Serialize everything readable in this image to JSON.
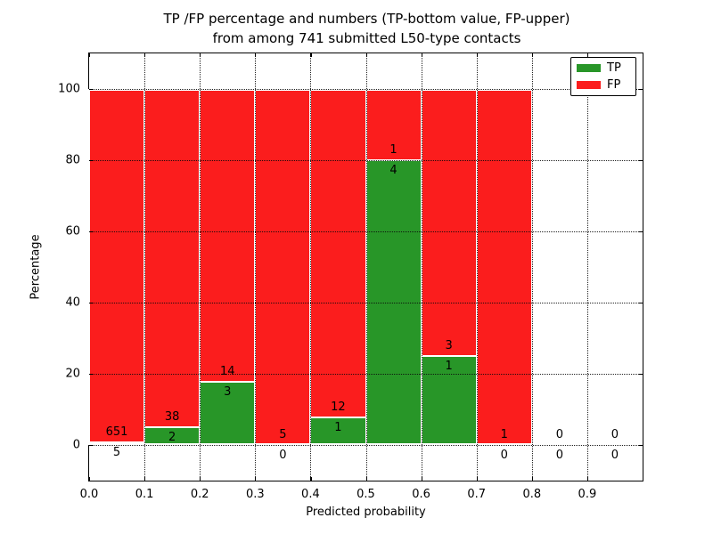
{
  "figure": {
    "title_line1": "TP /FP percentage and numbers (TP-bottom value, FP-upper)",
    "title_line2": "from among 741 submitted L50-type contacts"
  },
  "chart_data": {
    "type": "bar",
    "stacked": true,
    "title": "TP /FP percentage and numbers (TP-bottom value, FP-upper)\nfrom among 741 submitted L50-type contacts",
    "xlabel": "Predicted probability",
    "ylabel": "Percentage",
    "xlim": [
      0,
      1
    ],
    "ylim": [
      -10,
      110
    ],
    "xtick_values": [
      0.0,
      0.1,
      0.2,
      0.3,
      0.4,
      0.5,
      0.6,
      0.7,
      0.8,
      0.9
    ],
    "xtick_labels": [
      "0.0",
      "0.1",
      "0.2",
      "0.3",
      "0.4",
      "0.5",
      "0.6",
      "0.7",
      "0.8",
      "0.9"
    ],
    "ytick_values": [
      0,
      20,
      40,
      60,
      80,
      100
    ],
    "ytick_labels": [
      "0",
      "20",
      "40",
      "60",
      "80",
      "100"
    ],
    "grid": true,
    "grid_style": "dotted",
    "legend_position": "upper right",
    "legend": {
      "entries": [
        {
          "label": "TP",
          "color": "#289628"
        },
        {
          "label": "FP",
          "color": "#fb1d1d"
        }
      ]
    },
    "series_note": "Each bin stacks TP% (green, bottom) and FP% (red, top) summing to 100 when counts exist; annotation shows FP count above boundary, TP count below",
    "bins": [
      {
        "range": [
          0.0,
          0.1
        ],
        "tp_count": 5,
        "fp_count": 651,
        "tp_pct": 0.76,
        "fp_pct": 99.24
      },
      {
        "range": [
          0.1,
          0.2
        ],
        "tp_count": 2,
        "fp_count": 38,
        "tp_pct": 5.0,
        "fp_pct": 95.0
      },
      {
        "range": [
          0.2,
          0.3
        ],
        "tp_count": 3,
        "fp_count": 14,
        "tp_pct": 17.65,
        "fp_pct": 82.35
      },
      {
        "range": [
          0.3,
          0.4
        ],
        "tp_count": 0,
        "fp_count": 5,
        "tp_pct": 0.0,
        "fp_pct": 100.0
      },
      {
        "range": [
          0.4,
          0.5
        ],
        "tp_count": 1,
        "fp_count": 12,
        "tp_pct": 7.69,
        "fp_pct": 92.31
      },
      {
        "range": [
          0.5,
          0.6
        ],
        "tp_count": 4,
        "fp_count": 1,
        "tp_pct": 80.0,
        "fp_pct": 20.0
      },
      {
        "range": [
          0.6,
          0.7
        ],
        "tp_count": 1,
        "fp_count": 3,
        "tp_pct": 25.0,
        "fp_pct": 75.0
      },
      {
        "range": [
          0.7,
          0.8
        ],
        "tp_count": 0,
        "fp_count": 1,
        "tp_pct": 0.0,
        "fp_pct": 100.0
      },
      {
        "range": [
          0.8,
          0.9
        ],
        "tp_count": 0,
        "fp_count": 0,
        "tp_pct": null,
        "fp_pct": null
      },
      {
        "range": [
          0.9,
          1.0
        ],
        "tp_count": 0,
        "fp_count": 0,
        "tp_pct": null,
        "fp_pct": null
      }
    ],
    "colors": {
      "tp": "#289628",
      "fp": "#fb1d1d",
      "bar_edge": "#ffffff",
      "grid": "#0a0a0a",
      "frame": "#000000",
      "background": "#ffffff"
    }
  }
}
